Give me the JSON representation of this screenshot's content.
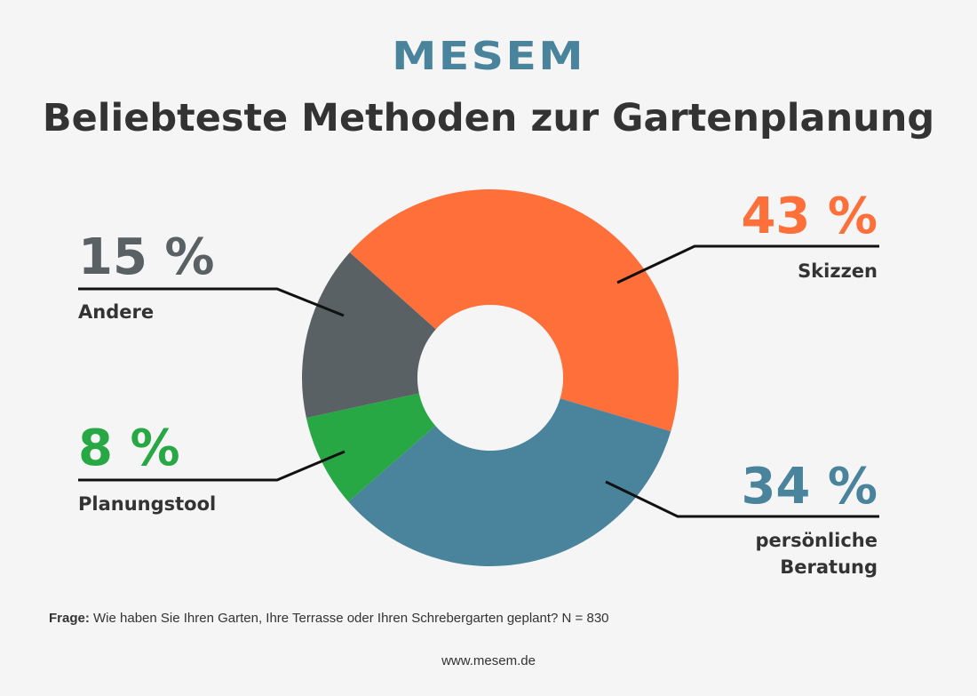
{
  "logo": "MESEM",
  "chart_data": {
    "type": "pie",
    "variant": "donut",
    "title": "Beliebteste Methoden zur Gartenplanung",
    "slices": [
      {
        "label": "Skizzen",
        "value": 43,
        "value_label": "43 %",
        "color": "#ff6f3a"
      },
      {
        "label": "persönliche Beratung",
        "label_lines": [
          "persönliche",
          "Beratung"
        ],
        "value": 34,
        "value_label": "34 %",
        "color": "#4a849c"
      },
      {
        "label": "Planungstool",
        "value": 8,
        "value_label": "8 %",
        "color": "#28a745"
      },
      {
        "label": "Andere",
        "value": 15,
        "value_label": "15 %",
        "color": "#596165"
      }
    ]
  },
  "footer": {
    "question_label": "Frage:",
    "question_text": " Wie haben Sie Ihren Garten, Ihre Terrasse oder Ihren Schrebergarten geplant? N = 830",
    "url": "www.mesem.de"
  }
}
